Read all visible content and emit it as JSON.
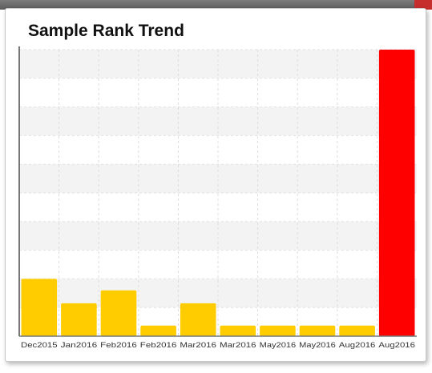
{
  "window": {
    "accent_color": "#c62d2d"
  },
  "card": {
    "title": "Sample Rank Trend"
  },
  "chart_data": {
    "type": "bar",
    "title": "Sample Rank Trend",
    "categories": [
      "Dec2015",
      "Jan2016",
      "Feb2016",
      "Feb2016",
      "Mar2016",
      "Mar2016",
      "May2016",
      "May2016",
      "Aug2016",
      "Aug2016"
    ],
    "values": [
      2.0,
      1.15,
      1.6,
      0.37,
      1.15,
      0.37,
      0.37,
      0.37,
      0.37,
      10.0
    ],
    "bar_colors": [
      "#ffcc00",
      "#ffcc00",
      "#ffcc00",
      "#ffcc00",
      "#ffcc00",
      "#ffcc00",
      "#ffcc00",
      "#ffcc00",
      "#ffcc00",
      "#ff0000"
    ],
    "ylim": [
      0,
      10
    ],
    "xlabel": "",
    "ylabel": "",
    "grid": true,
    "legend": "none",
    "y_tick_labels_shown": false
  }
}
